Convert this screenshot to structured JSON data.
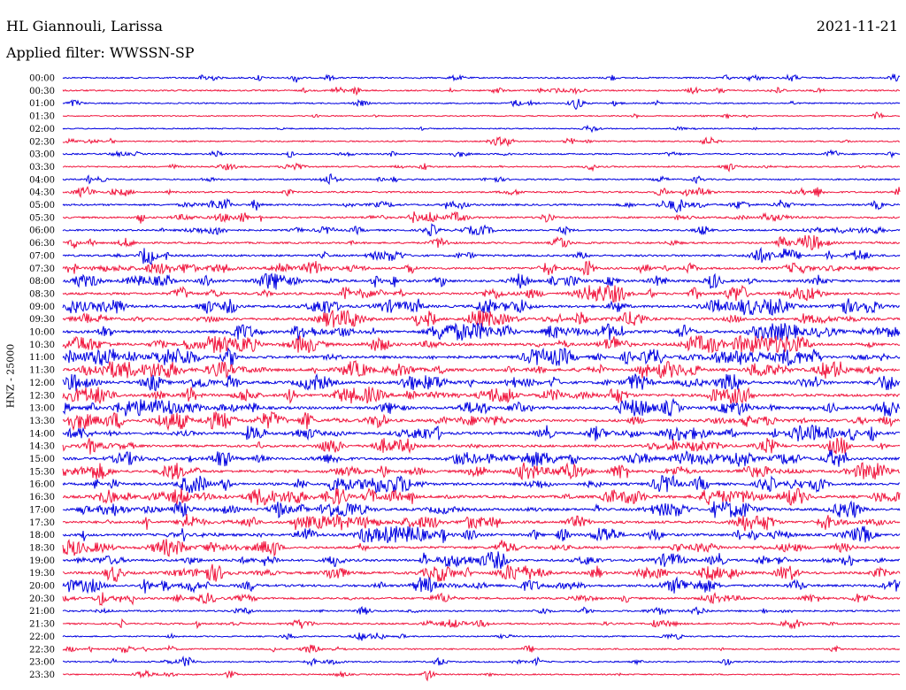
{
  "header": {
    "station": "HL Giannouli, Larissa",
    "date": "2021-11-21",
    "filter": "Applied filter: WWSSN-SP"
  },
  "chart_data": {
    "type": "line",
    "title": "HL Giannouli, Larissa",
    "ylabel": "HNZ - 25000",
    "colors": [
      "#0000e0",
      "#f0143c"
    ],
    "rows": [
      "00:00",
      "00:30",
      "01:00",
      "01:30",
      "02:00",
      "02:30",
      "03:00",
      "03:30",
      "04:00",
      "04:30",
      "05:00",
      "05:30",
      "06:00",
      "06:30",
      "07:00",
      "07:30",
      "08:00",
      "08:30",
      "09:00",
      "09:30",
      "10:00",
      "10:30",
      "11:00",
      "11:30",
      "12:00",
      "12:30",
      "13:00",
      "13:30",
      "14:00",
      "14:30",
      "15:00",
      "15:30",
      "16:00",
      "16:30",
      "17:00",
      "17:30",
      "18:00",
      "18:30",
      "19:00",
      "19:30",
      "20:00",
      "20:30",
      "21:00",
      "21:30",
      "22:00",
      "22:30",
      "23:00",
      "23:30"
    ],
    "activity": [
      0.3,
      0.3,
      0.2,
      0.1,
      0.1,
      0.2,
      0.3,
      0.3,
      0.3,
      0.4,
      0.5,
      0.5,
      0.5,
      0.5,
      0.6,
      0.7,
      0.8,
      0.8,
      0.9,
      0.9,
      1.0,
      1.0,
      1.0,
      1.0,
      1.0,
      1.0,
      1.0,
      1.0,
      0.9,
      0.8,
      0.9,
      0.9,
      0.9,
      1.0,
      0.9,
      0.9,
      0.9,
      0.8,
      0.8,
      0.9,
      0.8,
      0.6,
      0.4,
      0.4,
      0.2,
      0.3,
      0.3,
      0.2
    ]
  }
}
